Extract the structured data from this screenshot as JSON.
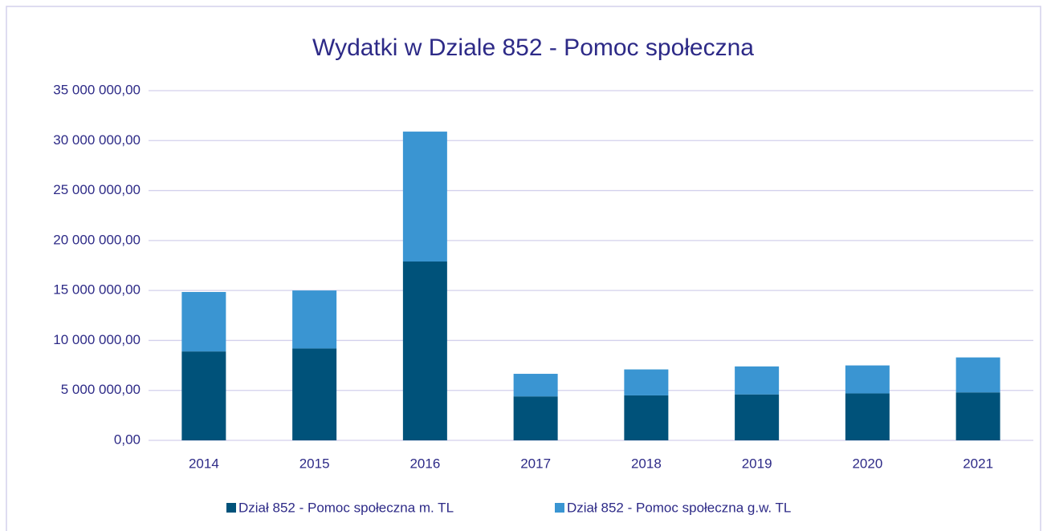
{
  "chart_data": {
    "type": "stacked_bar",
    "title": "Wydatki w Dziale 852 - Pomoc społeczna",
    "categories": [
      "2014",
      "2015",
      "2016",
      "2017",
      "2018",
      "2019",
      "2020",
      "2021"
    ],
    "series": [
      {
        "name": "Dział 852 - Pomoc społeczna m. TL",
        "color": "#00527a",
        "values": [
          8900000,
          9200000,
          17900000,
          4400000,
          4500000,
          4600000,
          4700000,
          4800000
        ]
      },
      {
        "name": "Dział 852 - Pomoc społeczna g.w. TL",
        "color": "#3a95d2",
        "values": [
          5950000,
          5800000,
          13000000,
          2260000,
          2600000,
          2800000,
          2800000,
          3500000
        ]
      }
    ],
    "ylim": [
      0,
      35000000
    ],
    "yticks": [
      {
        "value": 0,
        "label": "0,00"
      },
      {
        "value": 5000000,
        "label": "5 000 000,00"
      },
      {
        "value": 10000000,
        "label": "10 000 000,00"
      },
      {
        "value": 15000000,
        "label": "15 000 000,00"
      },
      {
        "value": 20000000,
        "label": "20 000 000,00"
      },
      {
        "value": 25000000,
        "label": "25 000 000,00"
      },
      {
        "value": 30000000,
        "label": "30 000 000,00"
      },
      {
        "value": 35000000,
        "label": "35 000 000,00"
      }
    ],
    "grid": true,
    "legend": "bottom"
  }
}
